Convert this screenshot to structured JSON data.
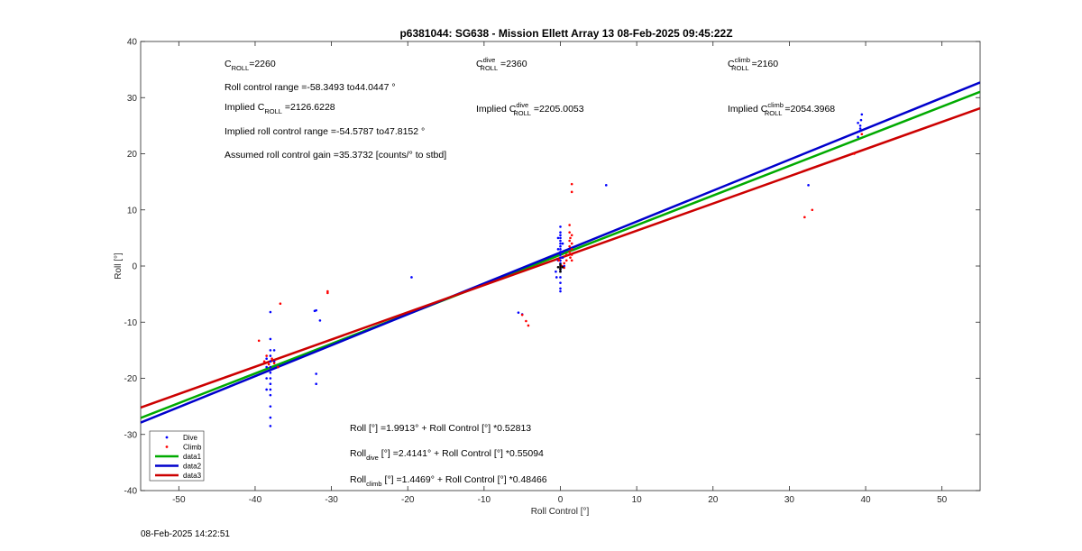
{
  "chart_data": {
    "type": "scatter",
    "title": "p6381044: SG638 - Mission Ellett Array 13 08-Feb-2025 09:45:22Z",
    "xlabel": "Roll Control [°]",
    "ylabel": "Roll [°]",
    "xlim": [
      -55,
      55
    ],
    "ylim": [
      -40,
      40
    ],
    "xticks": [
      -50,
      -40,
      -30,
      -20,
      -10,
      0,
      10,
      20,
      30,
      40,
      50
    ],
    "yticks": [
      -40,
      -30,
      -20,
      -10,
      0,
      10,
      20,
      30,
      40
    ],
    "grid": false,
    "legend_position": "bottom-left",
    "series": [
      {
        "name": "Dive",
        "kind": "points",
        "color": "#0000ff",
        "points": [
          [
            -38,
            -8.2
          ],
          [
            -38,
            -13
          ],
          [
            -38,
            -15
          ],
          [
            -38,
            -16
          ],
          [
            -38,
            -17
          ],
          [
            -38,
            -18
          ],
          [
            -38,
            -19
          ],
          [
            -38,
            -20
          ],
          [
            -38,
            -21
          ],
          [
            -38,
            -22
          ],
          [
            -38,
            -23
          ],
          [
            -38,
            -25
          ],
          [
            -38,
            -27
          ],
          [
            -38,
            -28.5
          ],
          [
            -38.5,
            -16.5
          ],
          [
            -38.5,
            -18
          ],
          [
            -38.5,
            -20
          ],
          [
            -38.5,
            -22
          ],
          [
            -37.5,
            -17
          ],
          [
            -37.5,
            -15
          ],
          [
            -37,
            -18
          ],
          [
            -32.2,
            -8
          ],
          [
            -32,
            -7.9
          ],
          [
            -31.5,
            -9.7
          ],
          [
            -32,
            -19.2
          ],
          [
            -32,
            -21
          ],
          [
            -19.5,
            -2
          ],
          [
            -5.5,
            -8.3
          ],
          [
            -5,
            -8.6
          ],
          [
            0,
            7
          ],
          [
            0,
            6
          ],
          [
            0,
            5.5
          ],
          [
            0,
            5
          ],
          [
            0,
            4.5
          ],
          [
            0,
            4
          ],
          [
            0,
            3.5
          ],
          [
            0,
            3
          ],
          [
            0,
            2.5
          ],
          [
            0,
            2
          ],
          [
            0,
            1.5
          ],
          [
            0,
            1
          ],
          [
            0,
            0.5
          ],
          [
            0,
            -0.5
          ],
          [
            0,
            -1
          ],
          [
            0,
            -2
          ],
          [
            0,
            -3
          ],
          [
            0,
            -4
          ],
          [
            0,
            -4.5
          ],
          [
            -0.3,
            5
          ],
          [
            -0.3,
            3
          ],
          [
            -0.3,
            1
          ],
          [
            0.3,
            4
          ],
          [
            0.3,
            2.5
          ],
          [
            0.3,
            1.5
          ],
          [
            -0.5,
            -2
          ],
          [
            -0.6,
            -1
          ],
          [
            0.5,
            0
          ],
          [
            6,
            14.4
          ],
          [
            32.5,
            14.4
          ],
          [
            39,
            23
          ],
          [
            39.2,
            24
          ],
          [
            39.3,
            25
          ],
          [
            39.4,
            26
          ],
          [
            39.5,
            27
          ],
          [
            39.3,
            24.5
          ],
          [
            39,
            25.5
          ]
        ]
      },
      {
        "name": "Climb",
        "kind": "points",
        "color": "#ff0000",
        "points": [
          [
            -39.5,
            -13.3
          ],
          [
            -38.8,
            -17
          ],
          [
            -38.5,
            -16
          ],
          [
            -38.2,
            -17.5
          ],
          [
            -37.8,
            -16.5
          ],
          [
            -37,
            -18
          ],
          [
            -37.5,
            -17.3
          ],
          [
            -36.7,
            -6.7
          ],
          [
            -30.5,
            -4.5
          ],
          [
            -30.5,
            -4.8
          ],
          [
            -5,
            -8.7
          ],
          [
            -4.5,
            -9.8
          ],
          [
            -4.2,
            -10.6
          ],
          [
            1.2,
            7.3
          ],
          [
            1.5,
            14.6
          ],
          [
            1.5,
            13.2
          ],
          [
            1.5,
            5.5
          ],
          [
            1.3,
            5
          ],
          [
            1.2,
            4.5
          ],
          [
            1.5,
            4
          ],
          [
            1.2,
            3.5
          ],
          [
            1.5,
            3
          ],
          [
            1.2,
            2.5
          ],
          [
            1.5,
            2
          ],
          [
            1.3,
            1.5
          ],
          [
            0.8,
            1
          ],
          [
            0.5,
            0.5
          ],
          [
            0.2,
            0
          ],
          [
            1.5,
            1
          ],
          [
            1.2,
            6
          ],
          [
            0.8,
            2
          ],
          [
            -0.2,
            1
          ],
          [
            0.5,
            -0.3
          ],
          [
            32,
            8.7
          ],
          [
            33,
            10
          ],
          [
            38.5,
            20
          ],
          [
            39.5,
            23.5
          ]
        ]
      },
      {
        "name": "data1",
        "kind": "line",
        "color": "#00aa00",
        "x": [
          -55,
          55
        ],
        "y": [
          -27.056,
          31.039
        ]
      },
      {
        "name": "data2",
        "kind": "line",
        "color": "#0000cc",
        "x": [
          -55,
          55
        ],
        "y": [
          -27.888,
          32.715
        ]
      },
      {
        "name": "data3",
        "kind": "line",
        "color": "#cc0000",
        "x": [
          -55,
          55
        ],
        "y": [
          -25.209,
          28.103
        ]
      },
      {
        "name": "",
        "kind": "points",
        "color": "#000000",
        "points": [
          [
            0,
            0
          ],
          [
            0,
            -0.3
          ],
          [
            0,
            -0.6
          ],
          [
            0,
            0.3
          ],
          [
            0,
            -1
          ],
          [
            0.3,
            -0.2
          ],
          [
            -0.3,
            -0.2
          ]
        ]
      }
    ],
    "annotations": [
      {
        "parts": [
          [
            "C",
            ""
          ],
          [
            "ROLL",
            "sub"
          ],
          [
            "=2260",
            ""
          ]
        ]
      },
      {
        "parts": [
          [
            "Roll control range =-58.3493 to44.0447 °",
            ""
          ]
        ]
      },
      {
        "parts": [
          [
            "Implied C",
            ""
          ],
          [
            "ROLL",
            "sub"
          ],
          [
            " =2126.6228",
            ""
          ]
        ]
      },
      {
        "parts": [
          [
            "Implied roll control range =-54.5787 to47.8152 °",
            ""
          ]
        ]
      },
      {
        "parts": [
          [
            "Assumed roll control gain =35.3732 [counts/° to stbd]",
            ""
          ]
        ]
      },
      {
        "parts": [
          [
            "C",
            ""
          ],
          [
            "dive",
            "sup"
          ],
          [
            "ROLL",
            "sub"
          ],
          [
            " =2360",
            ""
          ]
        ]
      },
      {
        "parts": [
          [
            "Implied C",
            ""
          ],
          [
            "dive",
            "sup"
          ],
          [
            "ROLL",
            "sub"
          ],
          [
            " =2205.0053",
            ""
          ]
        ]
      },
      {
        "parts": [
          [
            "C",
            ""
          ],
          [
            "climb",
            "sup"
          ],
          [
            "ROLL",
            "sub"
          ],
          [
            " =2160",
            ""
          ]
        ]
      },
      {
        "parts": [
          [
            "Implied C",
            ""
          ],
          [
            "climb",
            "sup"
          ],
          [
            "ROLL",
            "sub"
          ],
          [
            " =2054.3968",
            ""
          ]
        ]
      },
      {
        "parts": [
          [
            "Roll [°] =1.9913° + Roll Control [°] *0.52813",
            ""
          ]
        ]
      },
      {
        "parts": [
          [
            "Roll",
            ""
          ],
          [
            "dive",
            "sub"
          ],
          [
            " [°] =2.4141° + Roll Control [°] *0.55094",
            ""
          ]
        ]
      },
      {
        "parts": [
          [
            "Roll",
            ""
          ],
          [
            "climb",
            "sub"
          ],
          [
            " [°] =1.4469° + Roll Control [°] *0.48466",
            ""
          ]
        ]
      }
    ]
  },
  "footer_timestamp": "08-Feb-2025 14:22:51"
}
